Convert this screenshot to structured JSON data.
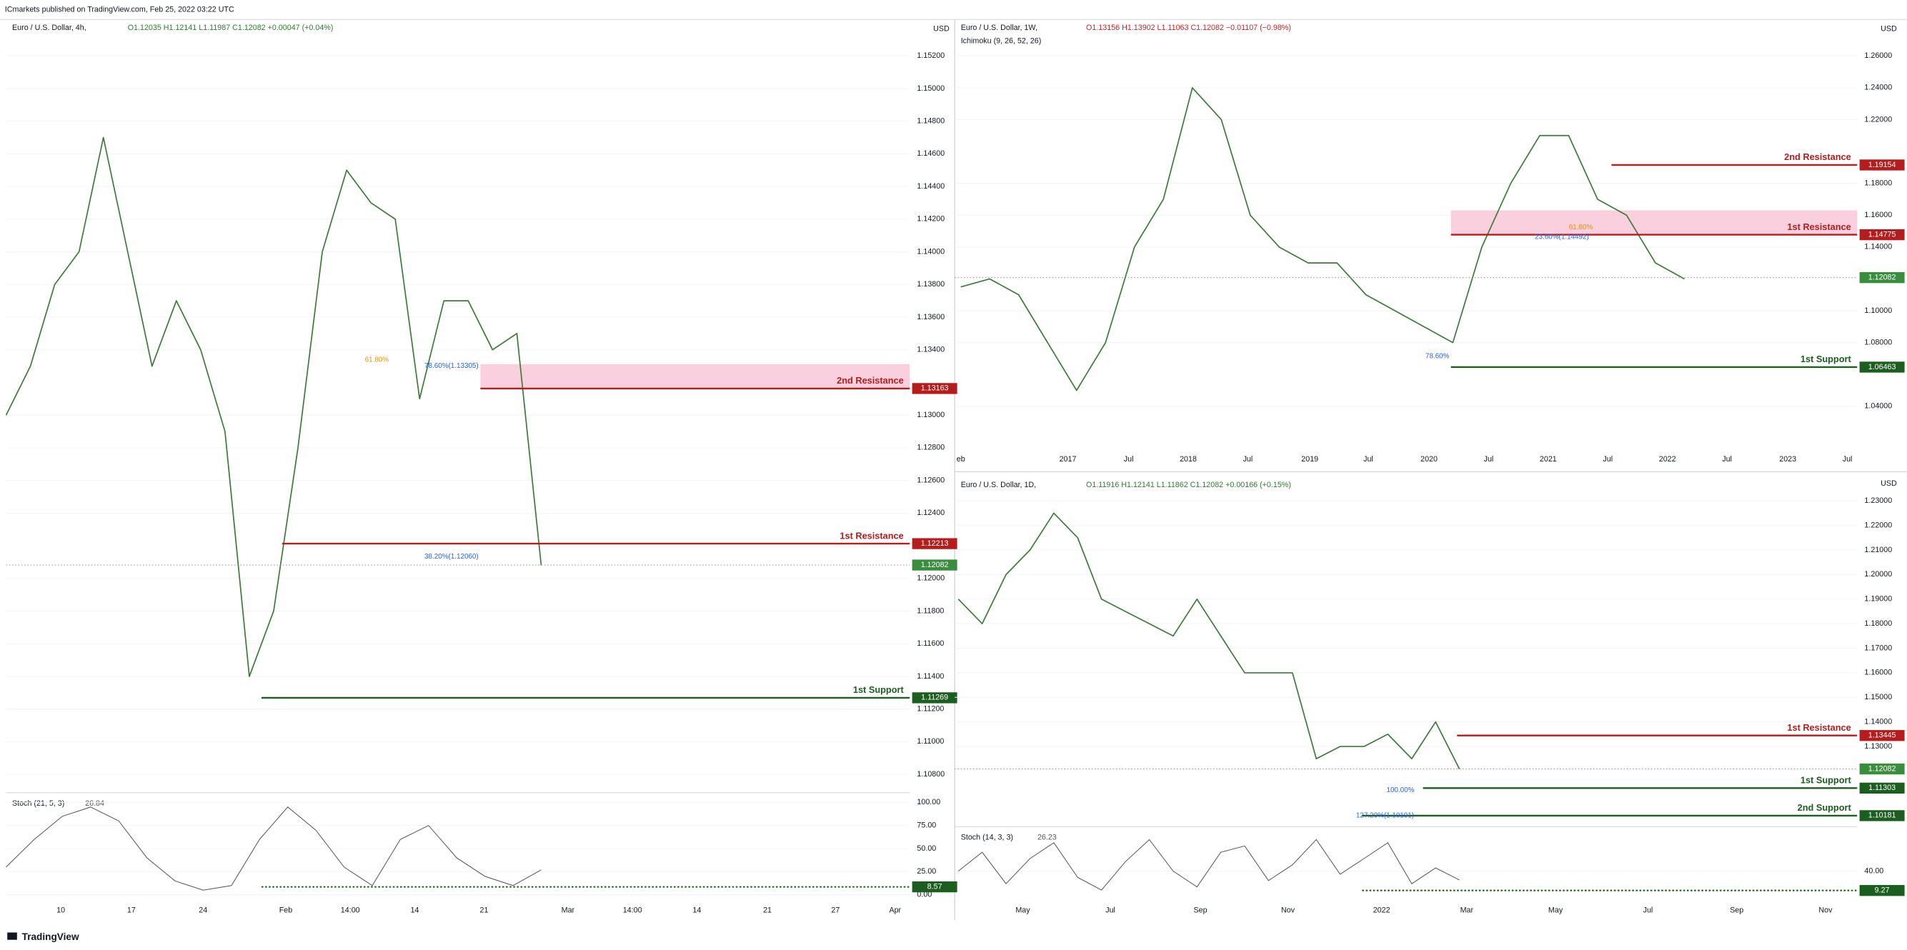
{
  "header": "ICmarkets published on TradingView.com, Feb 25, 2022 03:22 UTC",
  "footer": "TradingView",
  "panels": [
    {
      "symbol": "Euro / U.S. Dollar, 4h,",
      "ohlc": "O1.12035 H1.12141 L1.11987 C1.12082 +0.00047 (+0.04%)",
      "ohlc_color": "#2e7d32",
      "currency": "USD",
      "ylim": [
        1.10688,
        1.15423
      ],
      "yticks": [
        {
          "value": 1.152,
          "label": "1.15200"
        },
        {
          "value": 1.15,
          "label": "1.15000"
        },
        {
          "value": 1.148,
          "label": "1.14800"
        },
        {
          "value": 1.146,
          "label": "1.14600"
        },
        {
          "value": 1.144,
          "label": "1.14400"
        },
        {
          "value": 1.142,
          "label": "1.14200"
        },
        {
          "value": 1.14,
          "label": "1.14000"
        },
        {
          "value": 1.138,
          "label": "1.13800"
        },
        {
          "value": 1.136,
          "label": "1.13600"
        },
        {
          "value": 1.134,
          "label": "1.13400"
        },
        {
          "value": 1.13,
          "label": "1.13000"
        },
        {
          "value": 1.128,
          "label": "1.12800"
        },
        {
          "value": 1.126,
          "label": "1.12600"
        },
        {
          "value": 1.124,
          "label": "1.12400"
        },
        {
          "value": 1.12,
          "label": "1.12000"
        },
        {
          "value": 1.118,
          "label": "1.11800"
        },
        {
          "value": 1.116,
          "label": "1.11600"
        },
        {
          "value": 1.114,
          "label": "1.11400"
        },
        {
          "value": 1.112,
          "label": "1.11200"
        },
        {
          "value": 1.11,
          "label": "1.11000"
        },
        {
          "value": 1.108,
          "label": "1.10800"
        }
      ],
      "xticks": [
        "10",
        "17",
        "24",
        "Feb",
        "14:00",
        "14",
        "21",
        "Mar",
        "14:00",
        "14",
        "21",
        "27",
        "Apr"
      ],
      "price": [
        1.13,
        1.133,
        1.138,
        1.14,
        1.147,
        1.14,
        1.133,
        1.137,
        1.134,
        1.129,
        1.114,
        1.118,
        1.128,
        1.14,
        1.145,
        1.143,
        1.142,
        1.131,
        1.137,
        1.137,
        1.134,
        1.135,
        1.1208
      ],
      "current": 1.12082,
      "levels": [
        {
          "name": "2nd Resistance",
          "price": 1.13163,
          "color": "#b71c1c"
        },
        {
          "name": "1st Resistance",
          "price": 1.12213,
          "color": "#b71c1c"
        },
        {
          "name": "1st Support",
          "price": 1.11269,
          "color": "#1b5e20"
        }
      ],
      "fibs": [
        {
          "text": "61.80%",
          "color": "#e69500"
        },
        {
          "text": "78.60%(1.13305)",
          "color": "#2962ff"
        },
        {
          "text": "38.20%(1.12060)",
          "color": "#2962ff"
        }
      ],
      "stoch": {
        "name": "Stoch (21, 5, 3)",
        "reading": 26.84,
        "level": 8.57,
        "ylim": [
          -5.3,
          110.5
        ],
        "yticks": [
          {
            "value": 100,
            "label": "100.00"
          },
          {
            "value": 75,
            "label": "75.00"
          },
          {
            "value": 50,
            "label": "50.00"
          },
          {
            "value": 25,
            "label": "25.00"
          },
          {
            "value": 0,
            "label": "0.00"
          }
        ],
        "values": [
          30,
          60,
          85,
          95,
          80,
          40,
          15,
          5,
          10,
          60,
          95,
          70,
          30,
          10,
          60,
          75,
          40,
          20,
          10,
          27
        ]
      }
    },
    {
      "symbol": "Euro / U.S. Dollar, 1W,",
      "ohlc": "O1.13156 H1.13902 L1.11063 C1.12082 −0.01107 (−0.98%)",
      "ohlc_color": "#c62828",
      "indicator": "Ichimoku (9, 26, 52, 26)",
      "currency": "USD",
      "ylim": [
        1.0127,
        1.2829
      ],
      "yticks": [
        {
          "value": 1.26,
          "label": "1.26000"
        },
        {
          "value": 1.24,
          "label": "1.24000"
        },
        {
          "value": 1.22,
          "label": "1.22000"
        },
        {
          "value": 1.18,
          "label": "1.18000"
        },
        {
          "value": 1.16,
          "label": "1.16000"
        },
        {
          "value": 1.14,
          "label": "1.14000"
        },
        {
          "value": 1.1,
          "label": "1.10000"
        },
        {
          "value": 1.08,
          "label": "1.08000"
        },
        {
          "value": 1.04,
          "label": "1.04000"
        }
      ],
      "xticks": [
        "eb",
        "2017",
        "Jul",
        "2018",
        "Jul",
        "2019",
        "Jul",
        "2020",
        "Jul",
        "2021",
        "Jul",
        "2022",
        "Jul",
        "2023",
        "Jul"
      ],
      "price": [
        1.115,
        1.12,
        1.11,
        1.08,
        1.05,
        1.08,
        1.14,
        1.17,
        1.24,
        1.22,
        1.16,
        1.14,
        1.13,
        1.13,
        1.11,
        1.1,
        1.09,
        1.08,
        1.14,
        1.18,
        1.21,
        1.21,
        1.17,
        1.16,
        1.13,
        1.12
      ],
      "current": 1.12082,
      "levels": [
        {
          "name": "2nd Resistance",
          "price": 1.19154,
          "color": "#b71c1c"
        },
        {
          "name": "1st Resistance",
          "price": 1.14775,
          "color": "#b71c1c"
        },
        {
          "name": "1st Support",
          "price": 1.06463,
          "color": "#1b5e20"
        }
      ],
      "fibs": [
        {
          "text": "61.80%",
          "color": "#e69500"
        },
        {
          "text": "23.60%(1.14492)",
          "color": "#2962ff"
        },
        {
          "text": "78.60%",
          "color": "#2962ff"
        }
      ]
    },
    {
      "symbol": "Euro / U.S. Dollar, 1D,",
      "ohlc": "O1.11916 H1.12141 L1.11862 C1.12082 +0.00166 (+0.15%)",
      "ohlc_color": "#2e7d32",
      "currency": "USD",
      "ylim": [
        1.0973,
        1.2409
      ],
      "yticks": [
        {
          "value": 1.23,
          "label": "1.23000"
        },
        {
          "value": 1.22,
          "label": "1.22000"
        },
        {
          "value": 1.21,
          "label": "1.21000"
        },
        {
          "value": 1.2,
          "label": "1.20000"
        },
        {
          "value": 1.19,
          "label": "1.19000"
        },
        {
          "value": 1.18,
          "label": "1.18000"
        },
        {
          "value": 1.17,
          "label": "1.17000"
        },
        {
          "value": 1.16,
          "label": "1.16000"
        },
        {
          "value": 1.15,
          "label": "1.15000"
        },
        {
          "value": 1.14,
          "label": "1.14000"
        },
        {
          "value": 1.13,
          "label": "1.13000"
        }
      ],
      "xticks": [
        "May",
        "Jul",
        "Sep",
        "Nov",
        "2022",
        "Mar",
        "May",
        "Jul",
        "Sep",
        "Nov"
      ],
      "price": [
        1.19,
        1.18,
        1.2,
        1.21,
        1.225,
        1.215,
        1.19,
        1.185,
        1.18,
        1.175,
        1.19,
        1.175,
        1.16,
        1.16,
        1.16,
        1.125,
        1.13,
        1.13,
        1.135,
        1.125,
        1.14,
        1.1208
      ],
      "current": 1.12082,
      "levels": [
        {
          "name": "1st Resistance",
          "price": 1.13445,
          "color": "#b71c1c"
        },
        {
          "name": "1st Support",
          "price": 1.11303,
          "color": "#1b5e20"
        },
        {
          "name": "2nd Support",
          "price": 1.10181,
          "color": "#1b5e20"
        }
      ],
      "fibs": [
        {
          "text": "100.00%",
          "color": "#2962ff"
        },
        {
          "text": "127.20%(1.10191)",
          "color": "#2962ff"
        }
      ],
      "stoch": {
        "name": "Stoch (14, 3, 3)",
        "reading": 26.23,
        "level": 9.27,
        "ylim": [
          -5.3,
          110.5
        ],
        "yticks": [
          {
            "value": 40,
            "label": "40.00"
          }
        ],
        "values": [
          40,
          70,
          20,
          60,
          85,
          30,
          10,
          55,
          90,
          40,
          15,
          70,
          80,
          25,
          50,
          90,
          35,
          60,
          85,
          20,
          45,
          26
        ]
      }
    }
  ]
}
